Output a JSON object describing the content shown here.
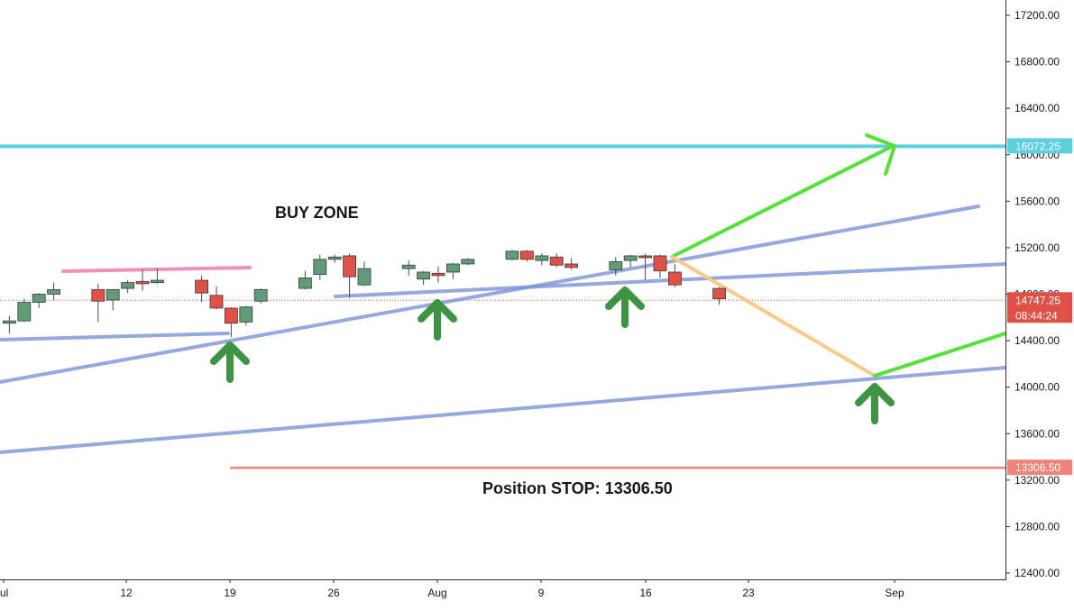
{
  "chart_data": {
    "type": "candlestick",
    "title": "",
    "ylim": [
      12400,
      17400
    ],
    "y_ticks": [
      "17200.00",
      "16800.00",
      "16400.00",
      "16000.00",
      "15600.00",
      "15200.00",
      "14800.00",
      "14400.00",
      "14000.00",
      "13600.00",
      "13200.00",
      "12800.00",
      "12400.00"
    ],
    "x_ticks": [
      "ul",
      "12",
      "19",
      "26",
      "Aug",
      "9",
      "16",
      "23",
      "Sep"
    ],
    "candles": [
      {
        "date": "Jul 6",
        "open": 14550,
        "high": 14610,
        "low": 14460,
        "close": 14570
      },
      {
        "date": "Jul 7",
        "open": 14570,
        "high": 14760,
        "low": 14560,
        "close": 14730
      },
      {
        "date": "Jul 8",
        "open": 14730,
        "high": 14810,
        "low": 14680,
        "close": 14800
      },
      {
        "date": "Jul 9",
        "open": 14800,
        "high": 14900,
        "low": 14750,
        "close": 14840
      },
      {
        "date": "Jul 12",
        "open": 14840,
        "high": 14890,
        "low": 14560,
        "close": 14740
      },
      {
        "date": "Jul 13",
        "open": 14750,
        "high": 14840,
        "low": 14660,
        "close": 14840
      },
      {
        "date": "Jul 14",
        "open": 14850,
        "high": 14920,
        "low": 14810,
        "close": 14900
      },
      {
        "date": "Jul 15",
        "open": 14910,
        "high": 15010,
        "low": 14830,
        "close": 14890
      },
      {
        "date": "Jul 16",
        "open": 14900,
        "high": 15020,
        "low": 14890,
        "close": 14920
      },
      {
        "date": "Jul 19",
        "open": 14920,
        "high": 14960,
        "low": 14730,
        "close": 14810
      },
      {
        "date": "Jul 20",
        "open": 14790,
        "high": 14870,
        "low": 14670,
        "close": 14680
      },
      {
        "date": "Jul 21",
        "open": 14680,
        "high": 14690,
        "low": 14430,
        "close": 14550
      },
      {
        "date": "Jul 22",
        "open": 14560,
        "high": 14700,
        "low": 14530,
        "close": 14690
      },
      {
        "date": "Jul 23",
        "open": 14740,
        "high": 14850,
        "low": 14720,
        "close": 14840
      },
      {
        "date": "Jul 26",
        "open": 14850,
        "high": 15000,
        "low": 14840,
        "close": 14940
      },
      {
        "date": "Jul 27",
        "open": 14970,
        "high": 15140,
        "low": 14920,
        "close": 15100
      },
      {
        "date": "Jul 28",
        "open": 15100,
        "high": 15140,
        "low": 15070,
        "close": 15120
      },
      {
        "date": "Jul 29",
        "open": 15130,
        "high": 15150,
        "low": 14770,
        "close": 14950
      },
      {
        "date": "Jul 30",
        "open": 14880,
        "high": 15080,
        "low": 14870,
        "close": 15020
      },
      {
        "date": "Aug 2",
        "open": 15020,
        "high": 15090,
        "low": 14960,
        "close": 15050
      },
      {
        "date": "Aug 3",
        "open": 14930,
        "high": 15000,
        "low": 14880,
        "close": 14990
      },
      {
        "date": "Aug 4",
        "open": 14980,
        "high": 15040,
        "low": 14900,
        "close": 14960
      },
      {
        "date": "Aug 5",
        "open": 14990,
        "high": 15070,
        "low": 14930,
        "close": 15060
      },
      {
        "date": "Aug 6",
        "open": 15060,
        "high": 15110,
        "low": 15050,
        "close": 15100
      },
      {
        "date": "Aug 9",
        "open": 15100,
        "high": 15180,
        "low": 15090,
        "close": 15170
      },
      {
        "date": "Aug 10",
        "open": 15170,
        "high": 15180,
        "low": 15080,
        "close": 15100
      },
      {
        "date": "Aug 11",
        "open": 15090,
        "high": 15150,
        "low": 15050,
        "close": 15130
      },
      {
        "date": "Aug 12",
        "open": 15120,
        "high": 15150,
        "low": 15030,
        "close": 15050
      },
      {
        "date": "Aug 13",
        "open": 15060,
        "high": 15110,
        "low": 15010,
        "close": 15030
      },
      {
        "date": "Aug 16",
        "open": 15010,
        "high": 15120,
        "low": 14960,
        "close": 15080
      },
      {
        "date": "Aug 17",
        "open": 15090,
        "high": 15140,
        "low": 15030,
        "close": 15130
      },
      {
        "date": "Aug 18",
        "open": 15130,
        "high": 15150,
        "low": 14920,
        "close": 15120
      },
      {
        "date": "Aug 19",
        "open": 15130,
        "high": 15140,
        "low": 14940,
        "close": 15000
      },
      {
        "date": "Aug 20",
        "open": 14990,
        "high": 15060,
        "low": 14860,
        "close": 14880
      },
      {
        "date": "Aug 23",
        "open": 14850,
        "high": 14860,
        "low": 14710,
        "close": 14760
      }
    ],
    "key_levels": [
      {
        "label": "16072.25",
        "value": 16072.25,
        "color": "#5ccfe0"
      },
      {
        "label": "13306.50",
        "value": 13306.5,
        "color": "#f0837a"
      }
    ],
    "last_price": {
      "price": "14747.25",
      "countdown": "08:44:24",
      "value": 14747.25
    },
    "annotations": [
      "BUY ZONE",
      "Position STOP: 13306.50"
    ],
    "colors": {
      "up": "#5f9c77",
      "down": "#df5147",
      "trendline": "#7a92d8",
      "projection_up": "#55e03a",
      "projection_down": "#fbc98a",
      "arrow": "#3f9444",
      "resistance": "#f291b5",
      "target_line": "#5ccfe0",
      "stop_line": "#f0837a"
    }
  }
}
